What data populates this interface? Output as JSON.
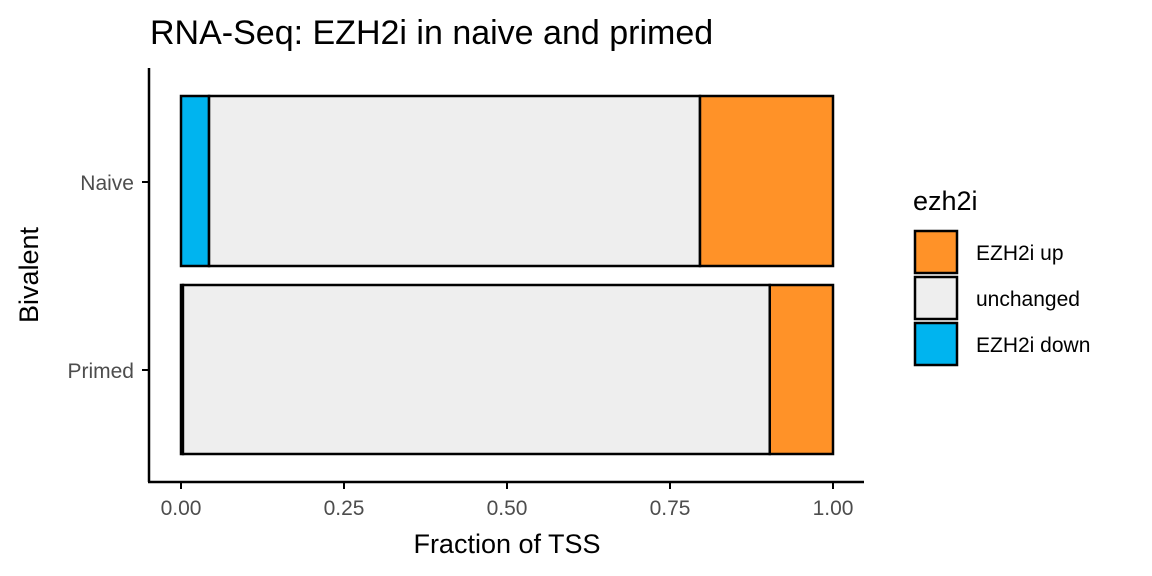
{
  "chart_data": {
    "type": "bar",
    "orientation": "horizontal",
    "stacked": true,
    "title": "RNA-Seq: EZH2i in naive and primed",
    "xlabel": "Fraction of TSS",
    "ylabel": "Bivalent",
    "xlim": [
      0,
      1
    ],
    "x_ticks": [
      "0.00",
      "0.25",
      "0.50",
      "0.75",
      "1.00"
    ],
    "x_tick_values": [
      0,
      0.25,
      0.5,
      0.75,
      1.0
    ],
    "categories": [
      "Naive",
      "Primed"
    ],
    "series": [
      {
        "name": "EZH2i down",
        "color": "#00B4EF",
        "values": [
          0.043,
          0.003
        ]
      },
      {
        "name": "unchanged",
        "color": "#EEEEEE",
        "values": [
          0.753,
          0.9
        ]
      },
      {
        "name": "EZH2i up",
        "color": "#FF9228",
        "values": [
          0.204,
          0.097
        ]
      }
    ],
    "legend": {
      "title": "ezh2i",
      "position": "right",
      "items": [
        {
          "label": "EZH2i up",
          "color": "#FF9228"
        },
        {
          "label": "unchanged",
          "color": "#EEEEEE"
        },
        {
          "label": "EZH2i down",
          "color": "#00B4EF"
        }
      ]
    },
    "grid": false
  }
}
